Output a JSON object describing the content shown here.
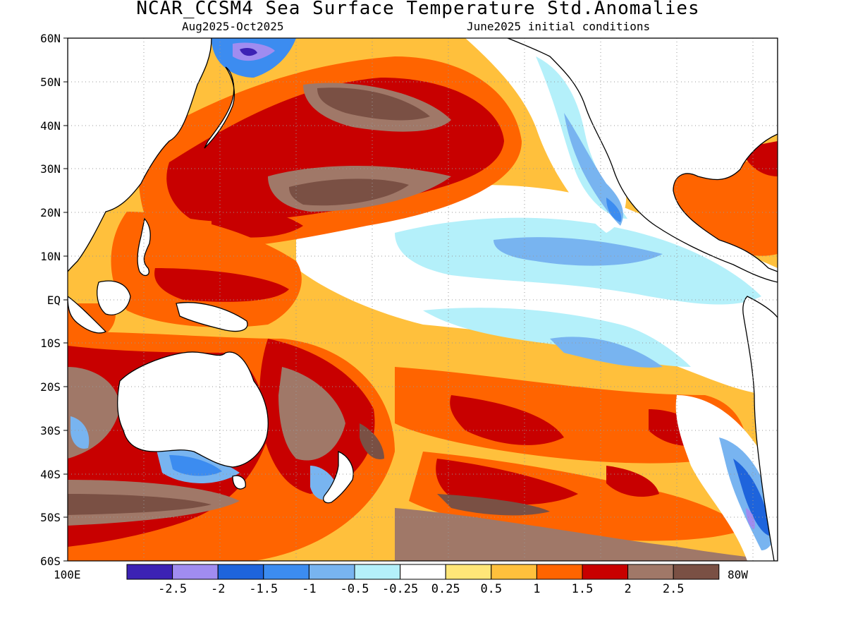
{
  "title": "NCAR_CCSM4 Sea Surface Temperature Std.Anomalies",
  "subtitle_left": "Aug2025-Oct2025",
  "subtitle_right": "June2025 initial conditions",
  "lat_labels": [
    "60N",
    "50N",
    "40N",
    "30N",
    "20N",
    "10N",
    "EQ",
    "10S",
    "20S",
    "30S",
    "40S",
    "50S",
    "60S"
  ],
  "lon_left": "100E",
  "lon_right": "80W",
  "colorbar": {
    "colors": [
      "#3c22b4",
      "#a08cf0",
      "#1e64dc",
      "#3c8cf0",
      "#78b4f0",
      "#b4f0fa",
      "#ffffff",
      "#ffe678",
      "#ffc03c",
      "#ff6400",
      "#c80000",
      "#a07868",
      "#7a5044"
    ],
    "labels": [
      "-2.5",
      "-2",
      "-1.5",
      "-1",
      "-0.5",
      "-0.25",
      "0.25",
      "0.5",
      "1",
      "1.5",
      "2",
      "2.5"
    ]
  },
  "land_color": "#ffffff",
  "coast_color": "#000000"
}
